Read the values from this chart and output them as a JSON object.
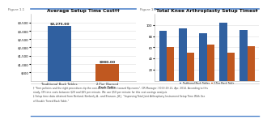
{
  "fig1_title": "Average Setup Time Cost††",
  "fig1_categories": [
    "Traditional Back Tables",
    "2-Tier Biomed\nBack Table"
  ],
  "fig1_values": [
    3275.0,
    980.0
  ],
  "fig1_labels": [
    "$3,275.00",
    "$980.00"
  ],
  "fig1_colors": [
    "#3060A0",
    "#C05820"
  ],
  "fig1_ylim": [
    0,
    4000
  ],
  "fig1_yticks": [
    500,
    1000,
    1500,
    2000,
    2500,
    3000,
    3500
  ],
  "fig2_title": "Total Knee Arthroplasty Setup Times‡",
  "fig2_groups": [
    "",
    "",
    "",
    "",
    ""
  ],
  "fig2_blue": [
    90,
    95,
    85,
    105,
    92
  ],
  "fig2_orange": [
    60,
    50,
    65,
    50,
    62
  ],
  "fig2_ylim": [
    0,
    120
  ],
  "fig2_yticks": [
    20,
    40,
    60,
    80,
    100
  ],
  "fig2_legend_blue": "Traditional Back Tables",
  "fig2_legend_orange": "2-Tier Back Table",
  "color_blue": "#3060A0",
  "color_orange": "#C05820",
  "footnote": "† “Firm policies and the right procedures tip the cost-benefit balance toward flip rooms”. OR Manager; 30(4):19-21, Apr. 2014. According to this\nstudy, OR time costs between $20 and $65 per minute. We use $50 per minute for this cost-savings analysis\n‡ Setup time data obtained from Berland, Kimberly A., and Branson, Jill J. “Improving Total Joint Arthroplasty Instrument Setup Time With Use\nof Double Tiered Back Table.”",
  "fig1_label": "Figure 1.1",
  "fig2_label": "Figure 1.2",
  "bg_color": "#FFFFFF",
  "grid_color": "#DDDDDD",
  "line_color": "#5588CC"
}
